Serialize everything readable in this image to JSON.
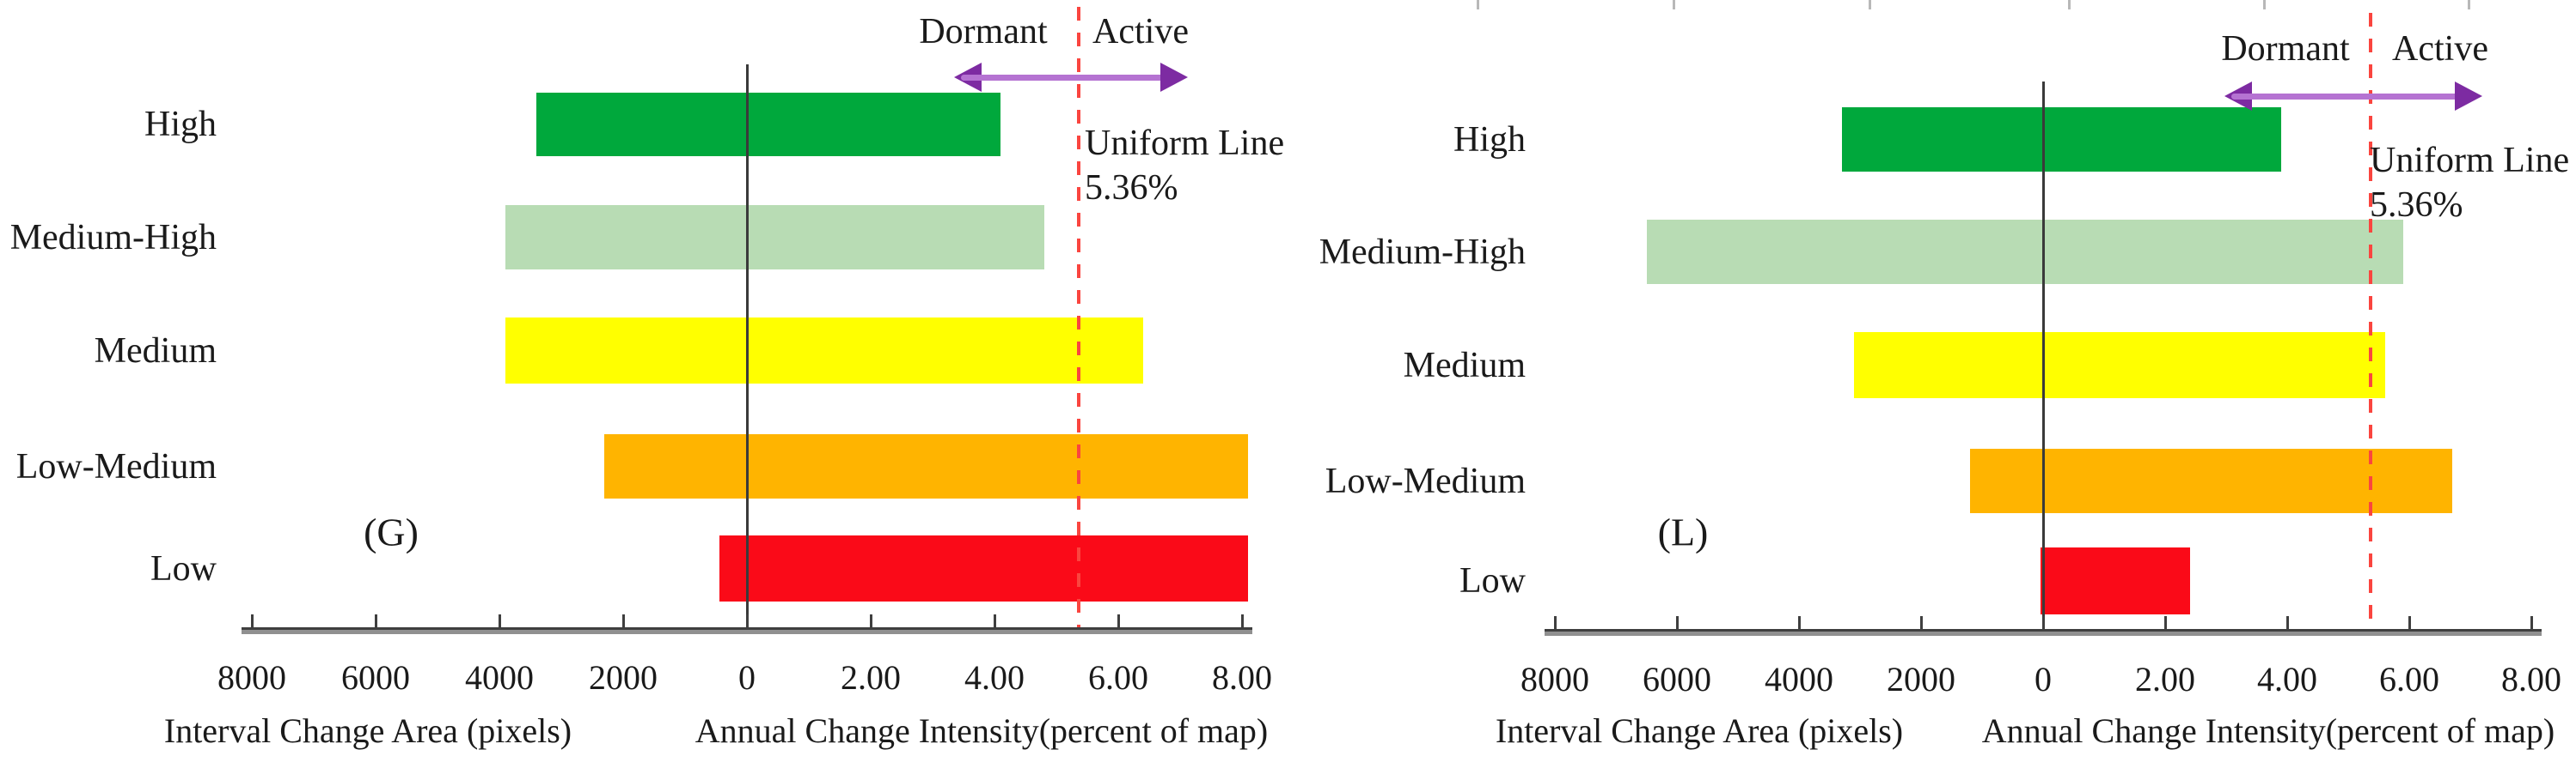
{
  "colors": {
    "uniform_line": "#FA453F",
    "arrow_shaft": "#B573D2",
    "arrow_head": "#7D2BA2",
    "axis_dark": "#3F3F3F",
    "axis_gray": "#909090",
    "zero_line": "#3A3A3A",
    "top_ticks": "#B8B8B8",
    "text": "#1A1A1A"
  },
  "chart_data": [
    {
      "type": "bar",
      "orientation": "horizontal-diverging",
      "panel_label": "(G)",
      "categories": [
        "High",
        "Medium-High",
        "Medium",
        "Low-Medium",
        "Low"
      ],
      "bar_colors": [
        "#00A83C",
        "#B8DCB4",
        "#FFFF00",
        "#FFB400",
        "#FA0A18"
      ],
      "series": [
        {
          "name": "Interval Change Area (pixels)",
          "axis": "left",
          "values": [
            3400,
            3900,
            3900,
            2300,
            450
          ]
        },
        {
          "name": "Annual Change Intensity (percent of map)",
          "axis": "right",
          "values": [
            4.1,
            4.8,
            6.4,
            8.1,
            8.1
          ]
        }
      ],
      "annotations": {
        "dormant": "Dormant",
        "active": "Active",
        "uniform_line": "Uniform Line",
        "uniform_value": "5.36%",
        "uniform_pct": 5.36
      },
      "x_axis": {
        "tick_labels": [
          "8000",
          "6000",
          "4000",
          "2000",
          "0",
          "2.00",
          "4.00",
          "6.00",
          "8.00"
        ],
        "left_max": 8000,
        "right_max": 8.0,
        "left_label": "Interval Change Area (pixels)",
        "right_label": "Annual Change Intensity(percent of map)"
      }
    },
    {
      "type": "bar",
      "orientation": "horizontal-diverging",
      "panel_label": "(L)",
      "categories": [
        "High",
        "Medium-High",
        "Medium",
        "Low-Medium",
        "Low"
      ],
      "bar_colors": [
        "#00A83C",
        "#B8DCB4",
        "#FFFF00",
        "#FFB400",
        "#FA0A18"
      ],
      "series": [
        {
          "name": "Interval Change Area (pixels)",
          "axis": "left",
          "values": [
            3300,
            6500,
            3100,
            1200,
            50
          ]
        },
        {
          "name": "Annual Change Intensity (percent of map)",
          "axis": "right",
          "values": [
            3.9,
            5.9,
            5.6,
            6.7,
            2.4
          ]
        }
      ],
      "annotations": {
        "dormant": "Dormant",
        "active": "Active",
        "uniform_line": "Uniform Line",
        "uniform_value": "5.36%",
        "uniform_pct": 5.36
      },
      "x_axis": {
        "tick_labels": [
          "8000",
          "6000",
          "4000",
          "2000",
          "0",
          "2.00",
          "4.00",
          "6.00",
          "8.00"
        ],
        "left_max": 8000,
        "right_max": 8.0,
        "left_label": "Interval Change Area (pixels)",
        "right_label": "Annual Change Intensity(percent of map)"
      }
    }
  ]
}
